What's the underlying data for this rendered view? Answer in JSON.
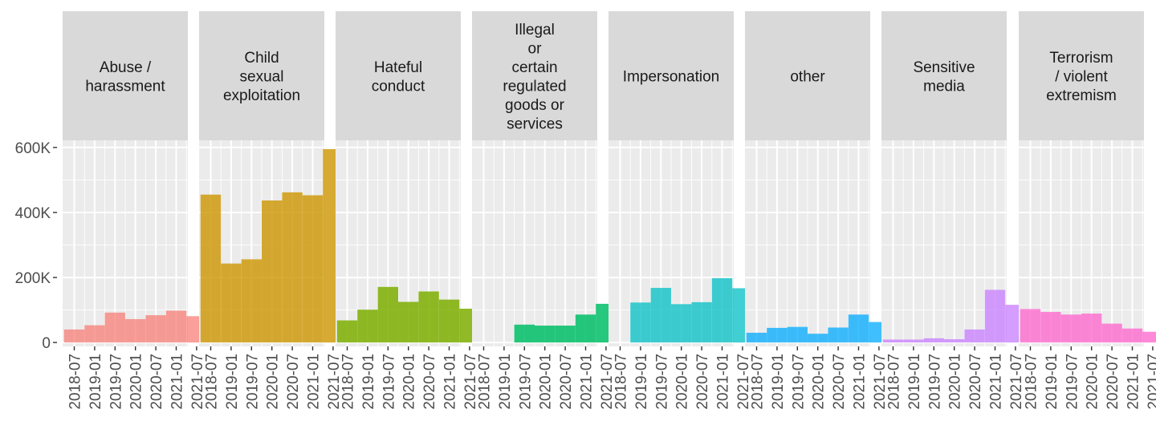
{
  "chart_data": {
    "type": "bar",
    "facet_layout": "single row of panels with strip labels on top",
    "x_ticks": [
      "2018-07",
      "2019-01",
      "2019-07",
      "2020-01",
      "2020-07",
      "2021-01",
      "2021-07"
    ],
    "periods": [
      "2018-07",
      "2019-01",
      "2019-07",
      "2020-01",
      "2020-07",
      "2021-01",
      "2021-07"
    ],
    "y_ticks": [
      {
        "value": 0,
        "label": "0"
      },
      {
        "value": 200000,
        "label": "200K"
      },
      {
        "value": 400000,
        "label": "400K"
      },
      {
        "value": 600000,
        "label": "600K"
      }
    ],
    "ylim": [
      -12000,
      622000
    ],
    "grid": true,
    "legend": "none",
    "panels": [
      {
        "label": "Abuse / harassment",
        "color": "#F8766D",
        "alpha": 0.7,
        "values": [
          40000,
          53000,
          92000,
          72000,
          84000,
          98000,
          81000
        ]
      },
      {
        "label": "Child sexual exploitation",
        "color": "#CD9600",
        "alpha": 0.8,
        "values": [
          455000,
          243000,
          256000,
          437000,
          462000,
          453000,
          595000
        ]
      },
      {
        "label": "Hateful conduct",
        "color": "#7CAE00",
        "alpha": 0.85,
        "values": [
          68000,
          101000,
          171000,
          125000,
          157000,
          132000,
          104000
        ]
      },
      {
        "label": "Illegal or certain regulated goods or services",
        "color": "#00BE67",
        "alpha": 0.85,
        "values": [
          null,
          null,
          55000,
          52000,
          52000,
          86000,
          119000
        ]
      },
      {
        "label": "Impersonation",
        "color": "#00BFC4",
        "alpha": 0.75,
        "values": [
          null,
          123000,
          168000,
          118000,
          124000,
          198000,
          167000
        ]
      },
      {
        "label": "other",
        "color": "#00A9FF",
        "alpha": 0.75,
        "values": [
          30000,
          45000,
          48000,
          27000,
          46000,
          86000,
          63000
        ]
      },
      {
        "label": "Sensitive media",
        "color": "#C77CFF",
        "alpha": 0.75,
        "values": [
          9000,
          9000,
          13000,
          10000,
          40000,
          162000,
          116000
        ]
      },
      {
        "label": "Terrorism / violent extremism",
        "color": "#FF61CC",
        "alpha": 0.75,
        "values": [
          103000,
          94000,
          86000,
          89000,
          58000,
          43000,
          33000
        ]
      }
    ]
  }
}
